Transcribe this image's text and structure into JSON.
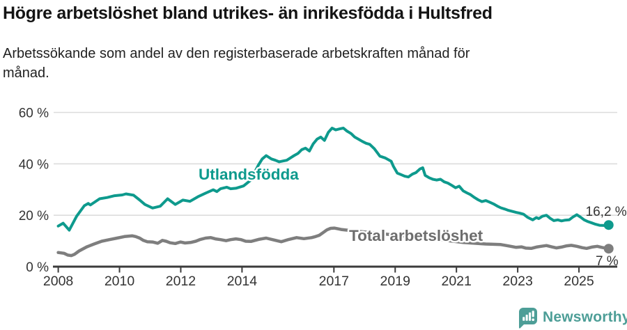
{
  "title": "Högre arbetslöshet bland utrikes- än inrikesfödda i Hultsfred",
  "subtitle": "Arbetssökande som andel av den registerbaserade arbetskraften månad för månad.",
  "branding": {
    "name": "Newsworthy",
    "color": "#4d9e97",
    "icon": "newsworthy-bar-chart-bubble"
  },
  "colors": {
    "foreign_born": "#0e9a8d",
    "total": "#7e7e7e",
    "total_label": "#6d6d6d",
    "axis": "#3b3b3b",
    "gridline": "#dcdcdc",
    "tick_text": "#333333"
  },
  "chart_data": {
    "type": "line",
    "title": "Högre arbetslöshet bland utrikes- än inrikesfödda i Hultsfred",
    "subtitle": "Arbetssökande som andel av den registerbaserade arbetskraften månad för månad.",
    "xlabel": "",
    "ylabel": "",
    "xlim": [
      2007.85,
      2026.25
    ],
    "ylim": [
      0,
      62
    ],
    "grid": "horizontal",
    "legend_position": "inline-labels",
    "x_ticks": [
      2008,
      2010,
      2012,
      2014,
      2017,
      2019,
      2021,
      2023,
      2025
    ],
    "x_tick_labels": [
      "2008",
      "2010",
      "2012",
      "2014",
      "2017",
      "2019",
      "2021",
      "2023",
      "2025"
    ],
    "y_ticks": [
      0,
      20,
      40,
      60
    ],
    "y_tick_labels": [
      "0 %",
      "20 %",
      "40 %",
      "60 %"
    ],
    "series": [
      {
        "name": "Utlandsfödda",
        "color": "#0e9a8d",
        "label_color": "#0e9a8d",
        "end_label": "16,2 %",
        "end_value": 16.2,
        "points": [
          [
            2008.0,
            15.8
          ],
          [
            2008.16,
            16.9
          ],
          [
            2008.36,
            14.2
          ],
          [
            2008.6,
            19.6
          ],
          [
            2008.85,
            23.7
          ],
          [
            2008.98,
            24.6
          ],
          [
            2009.05,
            24.0
          ],
          [
            2009.35,
            26.4
          ],
          [
            2009.6,
            26.9
          ],
          [
            2009.84,
            27.6
          ],
          [
            2010.09,
            27.9
          ],
          [
            2010.21,
            28.3
          ],
          [
            2010.46,
            27.8
          ],
          [
            2010.65,
            26.0
          ],
          [
            2010.83,
            24.2
          ],
          [
            2011.08,
            22.8
          ],
          [
            2011.33,
            23.5
          ],
          [
            2011.57,
            26.4
          ],
          [
            2011.82,
            24.2
          ],
          [
            2012.07,
            25.9
          ],
          [
            2012.3,
            25.4
          ],
          [
            2012.56,
            27.2
          ],
          [
            2012.81,
            28.6
          ],
          [
            2013.06,
            29.9
          ],
          [
            2013.18,
            29.2
          ],
          [
            2013.3,
            30.3
          ],
          [
            2013.5,
            30.9
          ],
          [
            2013.63,
            30.3
          ],
          [
            2013.8,
            30.5
          ],
          [
            2014.05,
            31.4
          ],
          [
            2014.29,
            33.7
          ],
          [
            2014.42,
            36.9
          ],
          [
            2014.54,
            39.6
          ],
          [
            2014.66,
            41.9
          ],
          [
            2014.79,
            43.2
          ],
          [
            2014.96,
            41.9
          ],
          [
            2015.09,
            41.4
          ],
          [
            2015.21,
            40.8
          ],
          [
            2015.33,
            41.1
          ],
          [
            2015.46,
            41.4
          ],
          [
            2015.58,
            42.3
          ],
          [
            2015.7,
            43.2
          ],
          [
            2015.83,
            44.1
          ],
          [
            2015.95,
            45.5
          ],
          [
            2016.07,
            46.1
          ],
          [
            2016.2,
            45.0
          ],
          [
            2016.32,
            47.7
          ],
          [
            2016.45,
            49.6
          ],
          [
            2016.57,
            50.4
          ],
          [
            2016.69,
            49.1
          ],
          [
            2016.82,
            52.3
          ],
          [
            2016.94,
            53.9
          ],
          [
            2017.06,
            53.2
          ],
          [
            2017.19,
            53.6
          ],
          [
            2017.31,
            53.9
          ],
          [
            2017.43,
            52.7
          ],
          [
            2017.56,
            51.8
          ],
          [
            2017.68,
            50.4
          ],
          [
            2017.8,
            49.6
          ],
          [
            2017.93,
            48.7
          ],
          [
            2018.05,
            48.0
          ],
          [
            2018.17,
            47.6
          ],
          [
            2018.32,
            45.9
          ],
          [
            2018.5,
            43.0
          ],
          [
            2018.67,
            42.3
          ],
          [
            2018.87,
            41.0
          ],
          [
            2018.94,
            39.1
          ],
          [
            2019.07,
            36.4
          ],
          [
            2019.19,
            35.8
          ],
          [
            2019.31,
            35.2
          ],
          [
            2019.43,
            34.9
          ],
          [
            2019.56,
            36.0
          ],
          [
            2019.68,
            36.6
          ],
          [
            2019.81,
            38.0
          ],
          [
            2019.9,
            38.5
          ],
          [
            2019.98,
            35.5
          ],
          [
            2020.11,
            34.6
          ],
          [
            2020.23,
            34.0
          ],
          [
            2020.35,
            33.7
          ],
          [
            2020.48,
            34.0
          ],
          [
            2020.6,
            33.0
          ],
          [
            2020.72,
            32.5
          ],
          [
            2020.85,
            31.6
          ],
          [
            2020.97,
            30.7
          ],
          [
            2021.09,
            31.3
          ],
          [
            2021.22,
            29.5
          ],
          [
            2021.34,
            28.7
          ],
          [
            2021.46,
            28.0
          ],
          [
            2021.59,
            26.9
          ],
          [
            2021.71,
            26.0
          ],
          [
            2021.83,
            25.3
          ],
          [
            2021.96,
            25.7
          ],
          [
            2022.08,
            25.1
          ],
          [
            2022.21,
            24.4
          ],
          [
            2022.33,
            23.6
          ],
          [
            2022.45,
            22.9
          ],
          [
            2022.58,
            22.4
          ],
          [
            2022.7,
            21.9
          ],
          [
            2022.82,
            21.5
          ],
          [
            2022.95,
            21.1
          ],
          [
            2023.07,
            20.8
          ],
          [
            2023.19,
            20.4
          ],
          [
            2023.32,
            19.2
          ],
          [
            2023.49,
            18.2
          ],
          [
            2023.61,
            19.1
          ],
          [
            2023.69,
            18.7
          ],
          [
            2023.81,
            19.6
          ],
          [
            2023.94,
            20.0
          ],
          [
            2024.06,
            18.8
          ],
          [
            2024.18,
            17.9
          ],
          [
            2024.31,
            18.2
          ],
          [
            2024.43,
            17.8
          ],
          [
            2024.55,
            18.1
          ],
          [
            2024.68,
            18.2
          ],
          [
            2024.8,
            19.3
          ],
          [
            2024.93,
            20.2
          ],
          [
            2025.05,
            19.3
          ],
          [
            2025.17,
            18.2
          ],
          [
            2025.3,
            17.5
          ],
          [
            2025.42,
            17.0
          ],
          [
            2025.54,
            16.5
          ],
          [
            2025.67,
            16.1
          ],
          [
            2025.82,
            16.0
          ],
          [
            2025.97,
            16.2
          ]
        ]
      },
      {
        "name": "Total arbetslöshet",
        "color": "#7e7e7e",
        "label_color": "#6d6d6d",
        "end_label": "7 %",
        "end_value": 7.0,
        "points": [
          [
            2008.0,
            5.5
          ],
          [
            2008.19,
            5.2
          ],
          [
            2008.31,
            4.5
          ],
          [
            2008.43,
            4.3
          ],
          [
            2008.53,
            4.8
          ],
          [
            2008.68,
            6.1
          ],
          [
            2008.93,
            7.7
          ],
          [
            2009.17,
            8.8
          ],
          [
            2009.42,
            9.9
          ],
          [
            2009.67,
            10.5
          ],
          [
            2009.92,
            11.1
          ],
          [
            2010.16,
            11.7
          ],
          [
            2010.41,
            12.0
          ],
          [
            2010.53,
            11.7
          ],
          [
            2010.66,
            11.1
          ],
          [
            2010.78,
            10.2
          ],
          [
            2010.91,
            9.7
          ],
          [
            2011.08,
            9.6
          ],
          [
            2011.25,
            9.1
          ],
          [
            2011.4,
            10.2
          ],
          [
            2011.52,
            9.9
          ],
          [
            2011.65,
            9.3
          ],
          [
            2011.82,
            9.0
          ],
          [
            2011.99,
            9.6
          ],
          [
            2012.14,
            9.2
          ],
          [
            2012.32,
            9.4
          ],
          [
            2012.49,
            9.9
          ],
          [
            2012.64,
            10.6
          ],
          [
            2012.81,
            11.1
          ],
          [
            2012.98,
            11.3
          ],
          [
            2013.13,
            10.8
          ],
          [
            2013.3,
            10.5
          ],
          [
            2013.48,
            10.1
          ],
          [
            2013.63,
            10.5
          ],
          [
            2013.8,
            10.8
          ],
          [
            2013.97,
            10.5
          ],
          [
            2014.12,
            9.9
          ],
          [
            2014.29,
            9.8
          ],
          [
            2014.54,
            10.6
          ],
          [
            2014.79,
            11.1
          ],
          [
            2015.03,
            10.4
          ],
          [
            2015.28,
            9.7
          ],
          [
            2015.53,
            10.6
          ],
          [
            2015.78,
            11.3
          ],
          [
            2016.02,
            10.9
          ],
          [
            2016.27,
            11.3
          ],
          [
            2016.4,
            11.7
          ],
          [
            2016.52,
            12.2
          ],
          [
            2016.64,
            13.2
          ],
          [
            2016.77,
            14.3
          ],
          [
            2016.89,
            14.9
          ],
          [
            2017.01,
            15.0
          ],
          [
            2017.14,
            14.7
          ],
          [
            2017.26,
            14.4
          ],
          [
            2017.76,
            13.8
          ],
          [
            2018.25,
            13.2
          ],
          [
            2018.74,
            12.6
          ],
          [
            2019.24,
            12.0
          ],
          [
            2019.73,
            11.4
          ],
          [
            2020.23,
            10.8
          ],
          [
            2020.72,
            10.1
          ],
          [
            2021.22,
            9.4
          ],
          [
            2021.46,
            9.2
          ],
          [
            2021.71,
            9.0
          ],
          [
            2021.96,
            8.8
          ],
          [
            2022.21,
            8.7
          ],
          [
            2022.45,
            8.6
          ],
          [
            2022.63,
            8.2
          ],
          [
            2022.77,
            7.9
          ],
          [
            2022.95,
            7.5
          ],
          [
            2023.12,
            7.7
          ],
          [
            2023.27,
            7.2
          ],
          [
            2023.44,
            7.1
          ],
          [
            2023.61,
            7.6
          ],
          [
            2023.76,
            7.9
          ],
          [
            2023.94,
            8.2
          ],
          [
            2024.11,
            7.7
          ],
          [
            2024.26,
            7.3
          ],
          [
            2024.43,
            7.6
          ],
          [
            2024.6,
            8.1
          ],
          [
            2024.75,
            8.3
          ],
          [
            2024.93,
            7.9
          ],
          [
            2025.1,
            7.4
          ],
          [
            2025.25,
            7.1
          ],
          [
            2025.42,
            7.6
          ],
          [
            2025.6,
            7.9
          ],
          [
            2025.74,
            7.5
          ],
          [
            2025.97,
            7.0
          ]
        ]
      }
    ]
  }
}
